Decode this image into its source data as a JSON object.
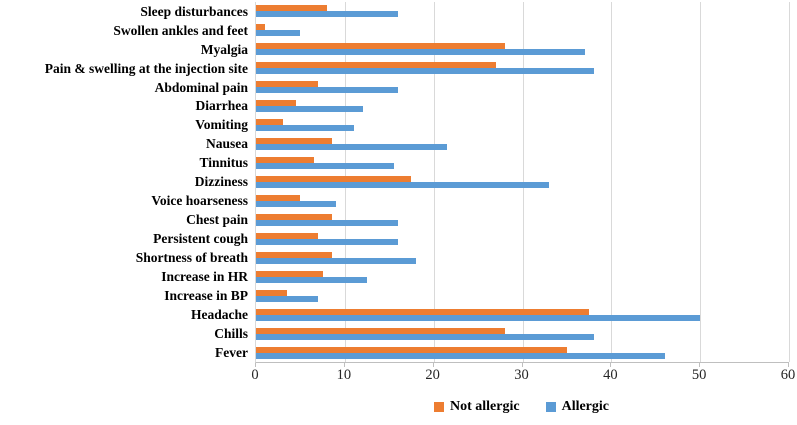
{
  "chart_data": {
    "type": "bar",
    "orientation": "horizontal",
    "title": "",
    "xlabel": "",
    "ylabel": "",
    "xlim": [
      0,
      60
    ],
    "x_ticks": [
      0,
      10,
      20,
      30,
      40,
      50,
      60
    ],
    "grid": "vertical-major",
    "legend_position": "bottom-center",
    "categories": [
      "Sleep disturbances",
      "Swollen ankles and feet",
      "Myalgia",
      "Pain & swelling at the injection site",
      "Abdominal pain",
      "Diarrhea",
      "Vomiting",
      "Nausea",
      "Tinnitus",
      "Dizziness",
      "Voice hoarseness",
      "Chest pain",
      "Persistent cough",
      "Shortness of breath",
      "Increase in HR",
      "Increase in BP",
      "Headache",
      "Chills",
      "Fever"
    ],
    "series": [
      {
        "name": "Not allergic",
        "color": "#ED7D31",
        "values": [
          8,
          1,
          28,
          27,
          7,
          4.5,
          3,
          8.5,
          6.5,
          17.5,
          5,
          8.5,
          7,
          8.5,
          7.5,
          3.5,
          37.5,
          28,
          35
        ]
      },
      {
        "name": "Allergic",
        "color": "#5B9BD5",
        "values": [
          16,
          5,
          37,
          38,
          16,
          12,
          11,
          21.5,
          15.5,
          33,
          9,
          16,
          16,
          18,
          12.5,
          7,
          50,
          38,
          46
        ]
      }
    ]
  },
  "legend": {
    "items": [
      {
        "label": "Not allergic",
        "color": "#ED7D31"
      },
      {
        "label": "Allergic",
        "color": "#5B9BD5"
      }
    ]
  },
  "colors": {
    "background": "#FFFFFF",
    "gridline": "#D9D9D9",
    "axis_line": "#BFBFBF",
    "text": "#000000"
  }
}
